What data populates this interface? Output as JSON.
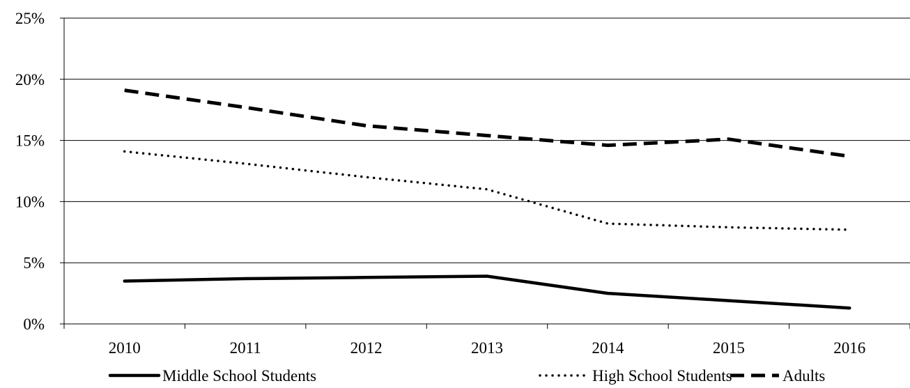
{
  "chart_data": {
    "type": "line",
    "categories": [
      "2010",
      "2011",
      "2012",
      "2013",
      "2014",
      "2015",
      "2016"
    ],
    "ylim": [
      0,
      25
    ],
    "y_ticks": [
      0,
      5,
      10,
      15,
      20,
      25
    ],
    "y_tick_labels": [
      "0%",
      "5%",
      "10%",
      "15%",
      "20%",
      "25%"
    ],
    "y_unit": "%",
    "grid": "horizontal",
    "legend_position": "bottom",
    "series": [
      {
        "name": "Middle School Students",
        "style": "solid",
        "color": "#000000",
        "values": [
          3.5,
          3.7,
          3.8,
          3.9,
          2.5,
          1.9,
          1.3
        ]
      },
      {
        "name": "High School Students",
        "style": "dotted",
        "color": "#000000",
        "values": [
          14.1,
          13.1,
          12.0,
          11.0,
          8.2,
          7.9,
          7.7
        ]
      },
      {
        "name": "Adults",
        "style": "dashed",
        "color": "#000000",
        "values": [
          19.1,
          17.7,
          16.2,
          15.4,
          14.6,
          15.1,
          13.7
        ]
      }
    ]
  }
}
